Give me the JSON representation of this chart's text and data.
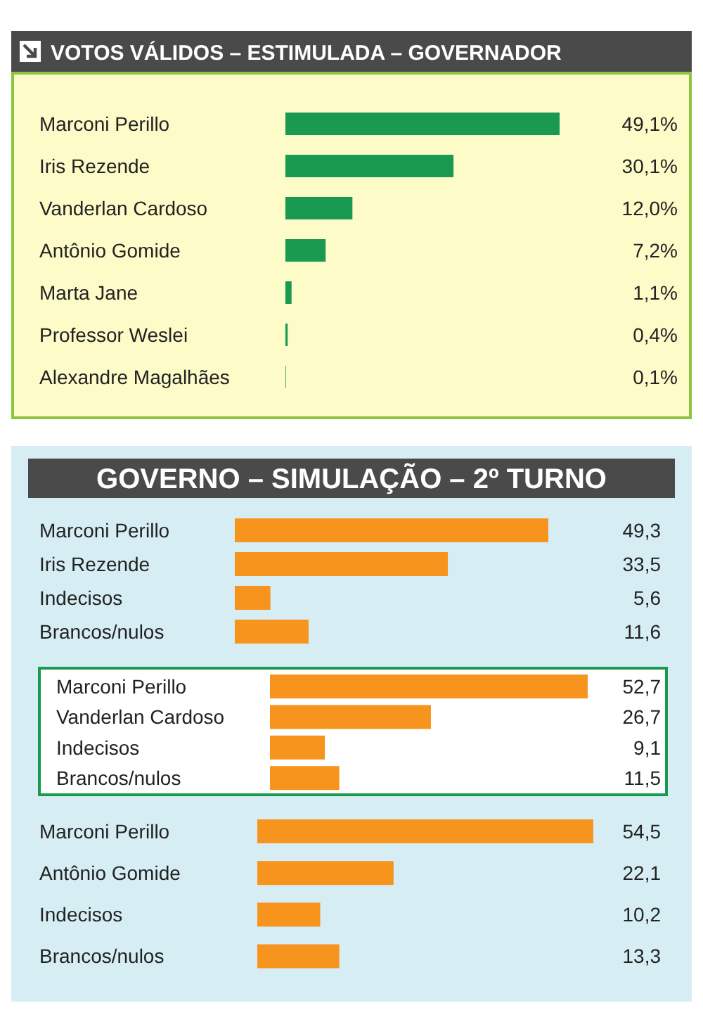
{
  "chart_data": [
    {
      "type": "bar",
      "orientation": "horizontal",
      "title": "VOTOS VÁLIDOS – ESTIMULADA – GOVERNADOR",
      "categories": [
        "Marconi Perillo",
        "Iris Rezende",
        "Vanderlan Cardoso",
        "Antônio Gomide",
        "Marta Jane",
        "Professor Weslei",
        "Alexandre Magalhães"
      ],
      "values": [
        49.1,
        30.1,
        12.0,
        7.2,
        1.1,
        0.4,
        0.1
      ],
      "value_labels": [
        "49,1%",
        "30,1%",
        "12,0%",
        "7,2%",
        "1,1%",
        "0,4%",
        "0,1%"
      ],
      "color": "#1a9a50"
    },
    {
      "type": "bar",
      "orientation": "horizontal",
      "title": "GOVERNO – SIMULAÇÃO – 2º TURNO",
      "categories": [
        "Marconi Perillo",
        "Iris Rezende",
        "Indecisos",
        "Brancos/nulos"
      ],
      "values": [
        49.3,
        33.5,
        5.6,
        11.6
      ],
      "value_labels": [
        "49,3",
        "33,5",
        "5,6",
        "11,6"
      ],
      "color": "#f7941d"
    },
    {
      "type": "bar",
      "orientation": "horizontal",
      "categories": [
        "Marconi Perillo",
        "Vanderlan Cardoso",
        "Indecisos",
        "Brancos/nulos"
      ],
      "values": [
        52.7,
        26.7,
        9.1,
        11.5
      ],
      "value_labels": [
        "52,7",
        "26,7",
        "9,1",
        "11,5"
      ],
      "color": "#f7941d"
    },
    {
      "type": "bar",
      "orientation": "horizontal",
      "categories": [
        "Marconi Perillo",
        "Antônio Gomide",
        "Indecisos",
        "Brancos/nulos"
      ],
      "values": [
        54.5,
        22.1,
        10.2,
        13.3
      ],
      "value_labels": [
        "54,5",
        "22,1",
        "10,2",
        "13,3"
      ],
      "color": "#f7941d"
    }
  ]
}
